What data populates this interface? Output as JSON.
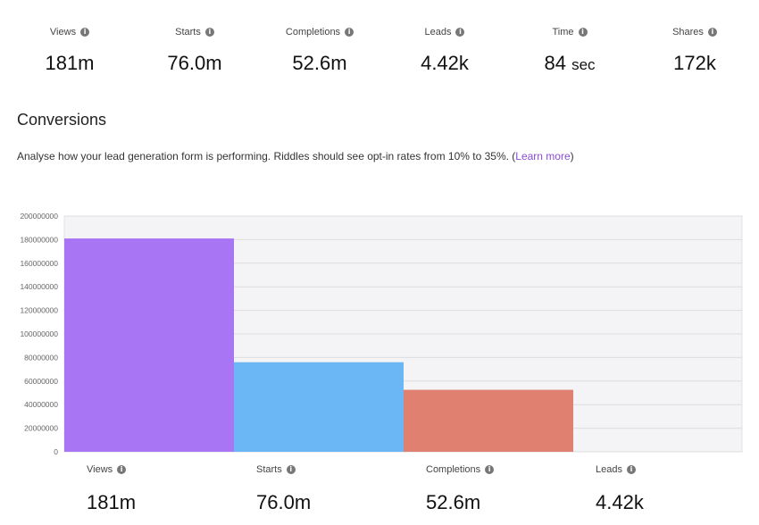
{
  "stats": [
    {
      "label": "Views",
      "value": "181m",
      "unit": ""
    },
    {
      "label": "Starts",
      "value": "76.0m",
      "unit": ""
    },
    {
      "label": "Completions",
      "value": "52.6m",
      "unit": ""
    },
    {
      "label": "Leads",
      "value": "4.42k",
      "unit": ""
    },
    {
      "label": "Time",
      "value": "84",
      "unit": "sec"
    },
    {
      "label": "Shares",
      "value": "172k",
      "unit": ""
    }
  ],
  "info_icon_glyph": "i",
  "conversions": {
    "title": "Conversions",
    "description": "Analyse how your lead generation form is performing. Riddles should see opt-in rates from 10% to 35%. (",
    "link_text": "Learn more",
    "desc_end": ")",
    "link_color": "#8a4dd8"
  },
  "bottom_stats": [
    {
      "label": "Views",
      "value": "181m"
    },
    {
      "label": "Starts",
      "value": "76.0m"
    },
    {
      "label": "Completions",
      "value": "52.6m"
    },
    {
      "label": "Leads",
      "value": "4.42k"
    }
  ],
  "chart_data": {
    "type": "bar",
    "categories": [
      "Views",
      "Starts",
      "Completions",
      "Leads"
    ],
    "values": [
      181000000,
      76000000,
      52600000,
      4420
    ],
    "colors": [
      "#a875f5",
      "#6bb7f5",
      "#e08070",
      "#9ed28a"
    ],
    "ylim": [
      0,
      200000000
    ],
    "yticks": [
      "0",
      "20000000",
      "40000000",
      "60000000",
      "80000000",
      "100000000",
      "120000000",
      "140000000",
      "160000000",
      "180000000",
      "200000000"
    ],
    "grid": true,
    "background": "#f4f3f5"
  }
}
